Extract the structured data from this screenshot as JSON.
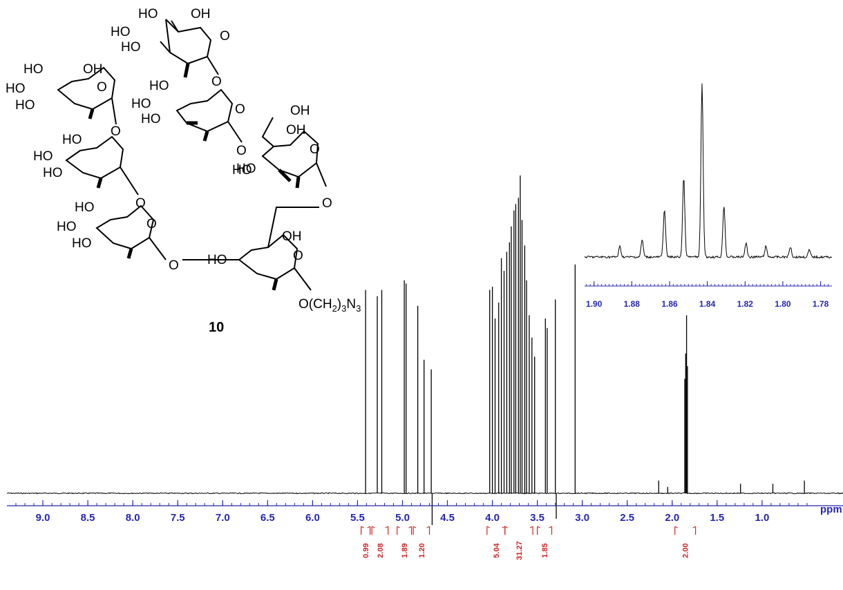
{
  "colors": {
    "axis": "#2424b8",
    "integral": "#d22020",
    "trace": "#000000"
  },
  "structure": {
    "compound_number": "10",
    "aglycone": "O(CH2)3N3",
    "labels": [
      "HO",
      "OH",
      "O"
    ]
  },
  "chart_data": [
    {
      "type": "line",
      "name": "main_spectrum",
      "xlabel": "ppm",
      "xlim": [
        9.4,
        0.1
      ],
      "x_reversed": true,
      "xticks": [
        "9.0",
        "8.5",
        "8.0",
        "7.5",
        "7.0",
        "6.5",
        "6.0",
        "5.5",
        "5.0",
        "4.5",
        "4.0",
        "3.5",
        "3.0",
        "2.5",
        "2.0",
        "1.5",
        "1.0"
      ],
      "xtick_values": [
        9.0,
        8.5,
        8.0,
        7.5,
        7.0,
        6.5,
        6.0,
        5.5,
        5.0,
        4.5,
        4.0,
        3.5,
        3.0,
        2.5,
        2.0,
        1.5,
        1.0
      ],
      "peaks": [
        {
          "x": 5.41,
          "height": 0.64
        },
        {
          "x": 5.28,
          "height": 0.62
        },
        {
          "x": 5.23,
          "height": 0.64
        },
        {
          "x": 4.98,
          "height": 0.67
        },
        {
          "x": 4.96,
          "height": 0.66
        },
        {
          "x": 4.83,
          "height": 0.59
        },
        {
          "x": 4.76,
          "height": 0.42
        },
        {
          "x": 4.68,
          "height": 0.39
        },
        {
          "x": 4.67,
          "height": -0.1
        },
        {
          "x": 4.03,
          "height": 0.64
        },
        {
          "x": 4.0,
          "height": 0.65
        },
        {
          "x": 3.97,
          "height": 0.55
        },
        {
          "x": 3.93,
          "height": 0.6
        },
        {
          "x": 3.9,
          "height": 0.74
        },
        {
          "x": 3.87,
          "height": 0.7
        },
        {
          "x": 3.84,
          "height": 0.76
        },
        {
          "x": 3.81,
          "height": 0.79
        },
        {
          "x": 3.79,
          "height": 0.84
        },
        {
          "x": 3.76,
          "height": 0.89
        },
        {
          "x": 3.74,
          "height": 0.91
        },
        {
          "x": 3.71,
          "height": 0.93
        },
        {
          "x": 3.69,
          "height": 1.0
        },
        {
          "x": 3.67,
          "height": 0.86
        },
        {
          "x": 3.64,
          "height": 0.78
        },
        {
          "x": 3.62,
          "height": 0.67
        },
        {
          "x": 3.59,
          "height": 0.56
        },
        {
          "x": 3.56,
          "height": 0.49
        },
        {
          "x": 3.53,
          "height": 0.43
        },
        {
          "x": 3.41,
          "height": 0.55
        },
        {
          "x": 3.39,
          "height": 0.52
        },
        {
          "x": 3.3,
          "height": 0.61
        },
        {
          "x": 3.29,
          "height": -0.08
        },
        {
          "x": 3.08,
          "height": 0.72
        },
        {
          "x": 2.15,
          "height": 0.04
        },
        {
          "x": 2.05,
          "height": 0.02
        },
        {
          "x": 1.86,
          "height": 0.36
        },
        {
          "x": 1.85,
          "height": 0.44
        },
        {
          "x": 1.84,
          "height": 0.56
        },
        {
          "x": 1.83,
          "height": 0.4
        },
        {
          "x": 1.24,
          "height": 0.03
        },
        {
          "x": 0.88,
          "height": 0.03
        },
        {
          "x": 0.53,
          "height": 0.04
        }
      ],
      "integrals": [
        {
          "value": "0.99",
          "x_start": 5.46,
          "x_end": 5.36
        },
        {
          "value": "2.08",
          "x_start": 5.34,
          "x_end": 5.16
        },
        {
          "value": "1.89",
          "x_start": 5.06,
          "x_end": 4.9
        },
        {
          "value": "1.20",
          "x_start": 4.88,
          "x_end": 4.7
        },
        {
          "value": "5.04",
          "x_start": 4.06,
          "x_end": 3.86
        },
        {
          "value": "31.27",
          "x_start": 3.86,
          "x_end": 3.55
        },
        {
          "value": "1.85",
          "x_start": 3.5,
          "x_end": 3.34
        },
        {
          "value": "2.00",
          "x_start": 1.97,
          "x_end": 1.74
        }
      ]
    },
    {
      "type": "line",
      "name": "inset_expansion",
      "xlim": [
        1.905,
        1.774
      ],
      "x_reversed": true,
      "xticks": [
        "1.90",
        "1.88",
        "1.86",
        "1.84",
        "1.82",
        "1.80",
        "1.78"
      ],
      "xtick_values": [
        1.9,
        1.88,
        1.86,
        1.84,
        1.82,
        1.8,
        1.78
      ],
      "peaks": [
        {
          "x": 1.8863,
          "height": 0.06
        },
        {
          "x": 1.8745,
          "height": 0.1
        },
        {
          "x": 1.8627,
          "height": 0.28
        },
        {
          "x": 1.8525,
          "height": 0.46
        },
        {
          "x": 1.8428,
          "height": 1.0
        },
        {
          "x": 1.8312,
          "height": 0.3
        },
        {
          "x": 1.8195,
          "height": 0.08
        },
        {
          "x": 1.809,
          "height": 0.06
        },
        {
          "x": 1.796,
          "height": 0.06
        },
        {
          "x": 1.786,
          "height": 0.04
        }
      ]
    }
  ]
}
